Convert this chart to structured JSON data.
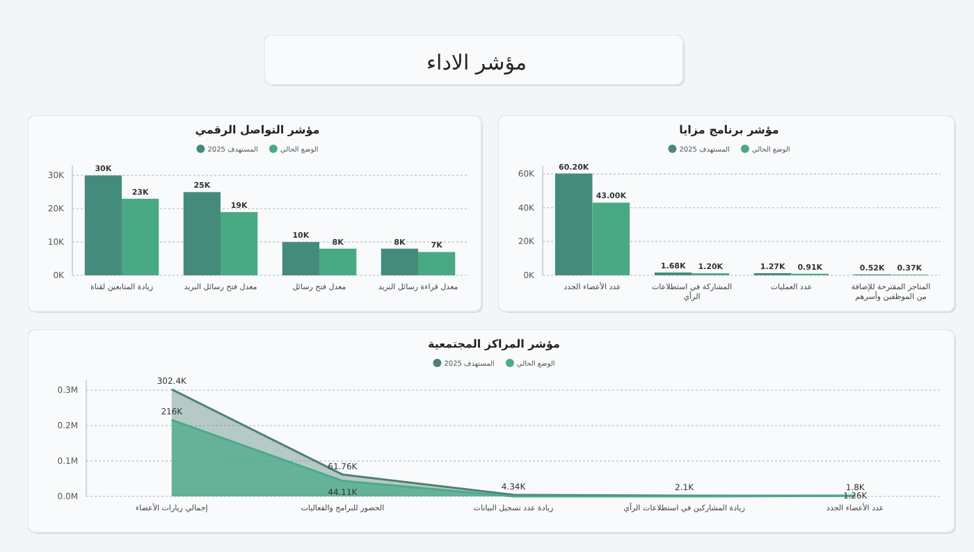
{
  "chart_data": [
    {
      "type": "other",
      "title": "مؤشر الاداء"
    },
    {
      "type": "bar",
      "title": "مؤشر برنامج مزايا",
      "categories": [
        "عدد الأعضاء الجدد",
        "المشاركة في استطلاعات الرأي",
        "عدد العمليات",
        "المتاجر المقترحة للإضافة من الموظفين وأسرهم"
      ],
      "series": [
        {
          "name": "المستهدف 2025",
          "color": "#458b7c",
          "values": [
            60200,
            1680,
            1270,
            520
          ],
          "value_labels": [
            "60.20K",
            "1.68K",
            "1.27K",
            "0.52K"
          ]
        },
        {
          "name": "الوضع الحالي",
          "color": "#49a984",
          "values": [
            43000,
            1200,
            910,
            370
          ],
          "value_labels": [
            "43.00K",
            "1.20K",
            "0.91K",
            "0.37K"
          ]
        }
      ],
      "ylim": [
        0,
        65000
      ],
      "yticks": [
        {
          "value": 0,
          "label": "0K"
        },
        {
          "value": 20000,
          "label": "20K"
        },
        {
          "value": 40000,
          "label": "40K"
        },
        {
          "value": 60000,
          "label": "60K"
        }
      ],
      "grid": "y",
      "legend": "top"
    },
    {
      "type": "bar",
      "title": "مؤشر التواصل الرقمي",
      "categories": [
        "زيادة المتابعين لقناة",
        "معدل فتح رسائل البريد",
        "معدل فتح رسائل",
        "معدل قراءة رسائل البريد"
      ],
      "series": [
        {
          "name": "المستهدف 2025",
          "color": "#458b7c",
          "values": [
            30000,
            25000,
            10000,
            8000
          ],
          "value_labels": [
            "30K",
            "25K",
            "10K",
            "8K"
          ]
        },
        {
          "name": "الوضع الحالي",
          "color": "#49a984",
          "values": [
            23000,
            19000,
            8000,
            7000
          ],
          "value_labels": [
            "23K",
            "19K",
            "8K",
            "7K"
          ]
        }
      ],
      "ylim": [
        0,
        33000
      ],
      "yticks": [
        {
          "value": 0,
          "label": "0K"
        },
        {
          "value": 10000,
          "label": "10K"
        },
        {
          "value": 20000,
          "label": "20K"
        },
        {
          "value": 30000,
          "label": "30K"
        }
      ],
      "grid": "y",
      "legend": "top"
    },
    {
      "type": "area",
      "title": "مؤشر المراكز المجتمعية",
      "categories": [
        "إجمالي زيارات الأعضاء",
        "الحضور للبرامج والفعاليات",
        "زيادة عدد تسجيل البيانات",
        "زيادة المشاركين في استطلاعات الرأي",
        "عدد الأعضاء الجدد"
      ],
      "series": [
        {
          "name": "المستهدف 2025",
          "color": "#4f7f76",
          "values": [
            302400,
            61760,
            4340,
            2100,
            1800
          ],
          "value_labels": [
            "302.4K",
            "61.76K",
            "4.34K",
            "2.1K",
            "1.8K"
          ]
        },
        {
          "name": "الوضع الحالي",
          "color": "#4caa8a",
          "values": [
            216000,
            44110,
            0,
            0,
            1260
          ],
          "value_labels": [
            "216K",
            "44.11K",
            null,
            null,
            "1.26K"
          ]
        }
      ],
      "ylim": [
        0,
        330000
      ],
      "yticks": [
        {
          "value": 0,
          "label": "0.0M"
        },
        {
          "value": 100000,
          "label": "0.1M"
        },
        {
          "value": 200000,
          "label": "0.2M"
        },
        {
          "value": 300000,
          "label": "0.3M"
        }
      ],
      "grid": "y",
      "legend": "top"
    }
  ]
}
